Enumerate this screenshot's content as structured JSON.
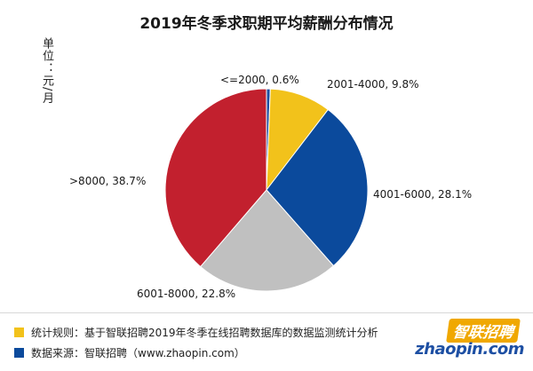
{
  "chart_data": {
    "type": "pie",
    "title": "2019年冬季求职期平均薪酬分布情况",
    "unit_label": "单位：元/月",
    "slices": [
      {
        "label": "<=2000",
        "value": 0.6,
        "text": "<=2000, 0.6%",
        "color": "#1d4fa3"
      },
      {
        "label": "2001-4000",
        "value": 9.8,
        "text": "2001-4000, 9.8%",
        "color": "#f2c21b"
      },
      {
        "label": "4001-6000",
        "value": 28.1,
        "text": "4001-6000, 28.1%",
        "color": "#0b4a9c"
      },
      {
        "label": "6001-8000",
        "value": 22.8,
        "text": "6001-8000, 22.8%",
        "color": "#c0c0c0"
      },
      {
        "label": ">8000",
        "value": 38.7,
        "text": ">8000, 38.7%",
        "color": "#c2202e"
      }
    ]
  },
  "footer": {
    "rule_text": "统计规则：基于智联招聘2019年冬季在线招聘数据库的数据监测统计分析",
    "rule_color": "#f2c21b",
    "source_text": "数据来源：智联招聘（www.zhaopin.com）",
    "source_color": "#0b4a9c"
  },
  "logo": {
    "cn": "智联招聘",
    "en": "zhaopin.com"
  }
}
